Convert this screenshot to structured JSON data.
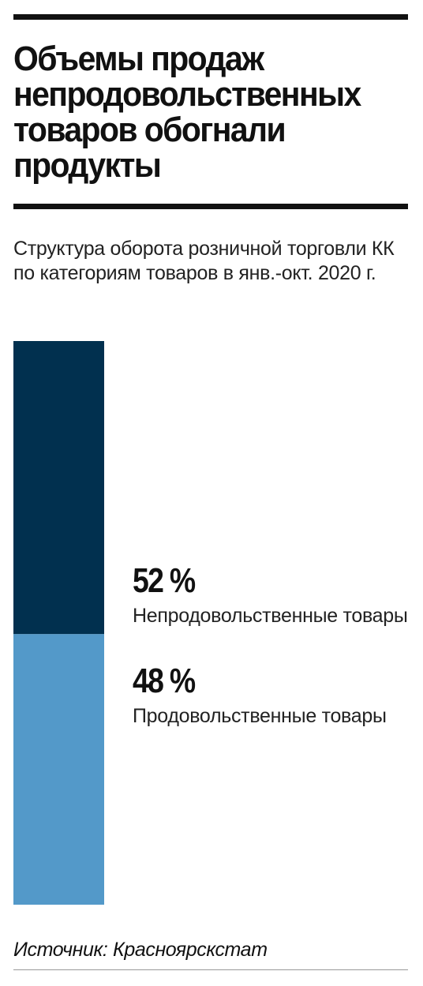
{
  "header": {
    "title": "Объемы продаж непродовольственных товаров обогнали продукты",
    "subtitle": "Структура оборота розничной торговли КК по категориям товаров в янв.-окт. 2020 г."
  },
  "chart_data": {
    "type": "bar",
    "orientation": "stacked-vertical",
    "unit": "%",
    "categories": [
      "Непродовольственные товары",
      "Продовольственные товары"
    ],
    "values": [
      52,
      48
    ],
    "value_labels": [
      "52 %",
      "48 %"
    ],
    "colors": [
      "#01304f",
      "#5399c9"
    ],
    "total": 100,
    "grid": false,
    "legend": "none"
  },
  "footer": {
    "source": "Источник: Красноярскстат"
  }
}
